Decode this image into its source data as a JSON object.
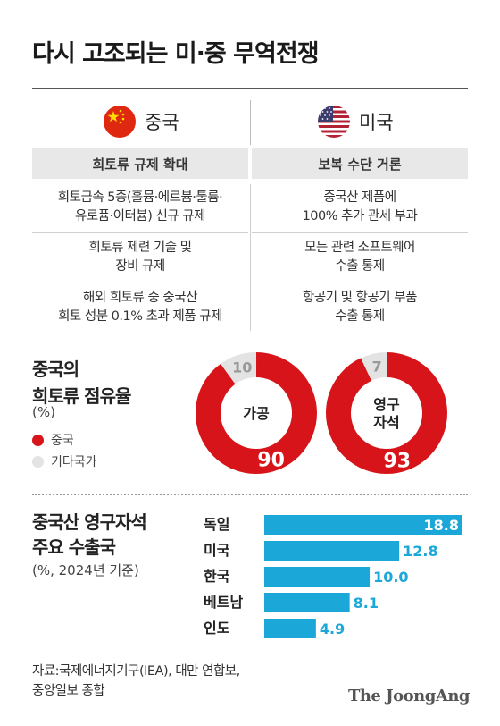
{
  "title": "다시 고조되는 미·중 무역전쟁",
  "countries": {
    "china": {
      "name": "중국",
      "flag_icon": "china-flag-icon",
      "subhead": "희토류 규제 확대",
      "measures": [
        [
          "희토금속 5종(홀뮴·에르븀·툴륨·",
          "유로퓸·이터븀) 신규 규제"
        ],
        [
          "희토류 제련 기술 및",
          "장비 규제"
        ],
        [
          "해외 희토류 중 중국산",
          "희토 성분 0.1% 초과 제품 규제"
        ]
      ]
    },
    "usa": {
      "name": "미국",
      "flag_icon": "usa-flag-icon",
      "subhead": "보복 수단 거론",
      "measures": [
        [
          "중국산 제품에",
          "100% 추가 관세 부과"
        ],
        [
          "모든 관련 소프트웨어",
          "수출 통제"
        ],
        [
          "항공기 및 항공기 부품",
          "수출 통제"
        ]
      ]
    }
  },
  "share_section": {
    "title_line1": "중국의",
    "title_line2": "희토류 점유율",
    "unit": "(%)",
    "legend": [
      {
        "label": "중국",
        "color": "#d7141a"
      },
      {
        "label": "기타국가",
        "color": "#e3e3e3"
      }
    ]
  },
  "export_section": {
    "title_line1": "중국산 영구자석",
    "title_line2": "주요 수출국",
    "unit": "(%, 2024년 기준)"
  },
  "source_line1": "자료:국제에너지기구(IEA), 대만 연합보,",
  "source_line2": "중앙일보 종합",
  "brand": "The JoongAng",
  "colors": {
    "china": "#d7141a",
    "other": "#e3e3e3",
    "bar": "#1ba8d8"
  },
  "chart_data": [
    {
      "type": "pie",
      "title": "가공",
      "categories": [
        "중국",
        "기타국가"
      ],
      "values": [
        90,
        10
      ],
      "labels": [
        "90",
        "10"
      ]
    },
    {
      "type": "pie",
      "title": "영구자석",
      "title_lines": [
        "영구",
        "자석"
      ],
      "categories": [
        "중국",
        "기타국가"
      ],
      "values": [
        93,
        7
      ],
      "labels": [
        "93",
        "7"
      ]
    },
    {
      "type": "bar",
      "orientation": "horizontal",
      "categories": [
        "독일",
        "미국",
        "한국",
        "베트남",
        "인도"
      ],
      "values": [
        18.8,
        12.8,
        10.0,
        8.1,
        4.9
      ],
      "labels": [
        "18.8",
        "12.8",
        "10.0",
        "8.1",
        "4.9"
      ],
      "xlim": [
        0,
        18.8
      ]
    }
  ]
}
